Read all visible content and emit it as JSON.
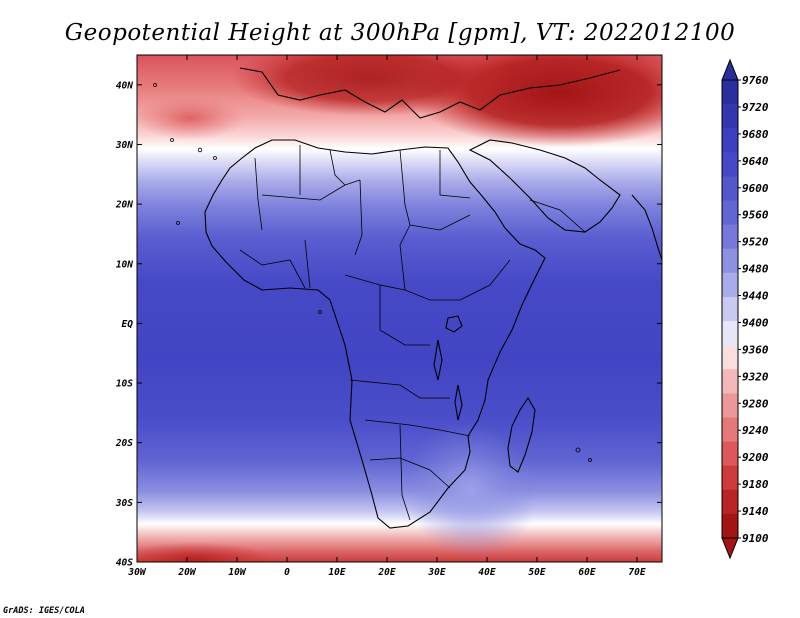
{
  "title": "Geopotential Height at 300hPa [gpm], VT: 2022012100",
  "credit": "GrADS: IGES/COLA",
  "map": {
    "region": "Africa",
    "variable": "Geopotential Height",
    "level": "300hPa",
    "lon_range": [
      -30,
      75
    ],
    "lat_range": [
      -40,
      45
    ],
    "lon_ticks": [
      "30W",
      "20W",
      "10W",
      "0",
      "10E",
      "20E",
      "30E",
      "40E",
      "50E",
      "60E",
      "70E"
    ],
    "lat_ticks": [
      "40S",
      "30S",
      "20S",
      "10S",
      "EQ",
      "10N",
      "20N",
      "30N",
      "40N"
    ]
  },
  "colorbar": {
    "labels": [
      "9760",
      "9720",
      "9680",
      "9640",
      "9600",
      "9560",
      "9520",
      "9480",
      "9440",
      "9400",
      "9360",
      "9320",
      "9280",
      "9240",
      "9200",
      "9180",
      "9140",
      "9100"
    ],
    "colors": [
      "#2b2f9e",
      "#3237b0",
      "#3a40bf",
      "#4549c7",
      "#5257cc",
      "#6066d3",
      "#7479db",
      "#8d91e2",
      "#a9acea",
      "#c8caf2",
      "#e6e6f8",
      "#f9dede",
      "#f3b9b9",
      "#ec9898",
      "#e57878",
      "#dd5858",
      "#cf3a3a",
      "#b92323",
      "#a31515"
    ]
  }
}
